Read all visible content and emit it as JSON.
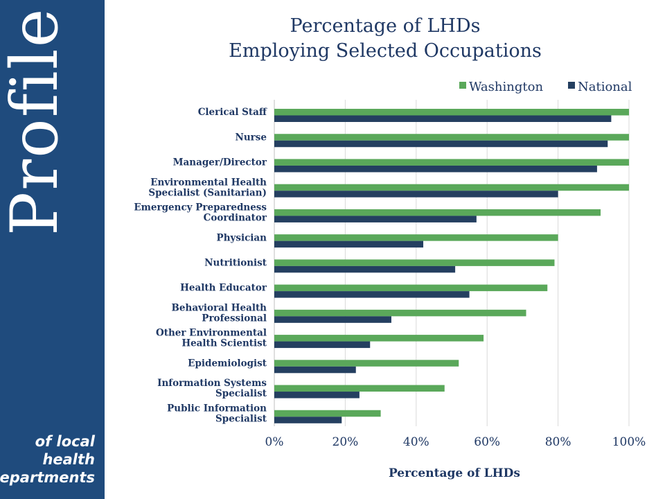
{
  "sidebar": {
    "brand": "Profile",
    "tagline": [
      "of local",
      "health",
      "departments"
    ],
    "background": "#1f4b7d"
  },
  "chart_data": {
    "type": "bar",
    "orientation": "horizontal",
    "title": [
      "Percentage of LHDs",
      "Employing Selected Occupations"
    ],
    "xlabel": "Percentage of LHDs",
    "ylabel": "",
    "xlim": [
      0,
      100
    ],
    "xticks": [
      "0%",
      "20%",
      "40%",
      "60%",
      "80%",
      "100%"
    ],
    "grid": true,
    "legend_position": "top-right",
    "categories": [
      [
        "Clerical Staff"
      ],
      [
        "Nurse"
      ],
      [
        "Manager/Director"
      ],
      [
        "Environmental Health",
        "Specialist (Sanitarian)"
      ],
      [
        "Emergency Preparedness",
        "Coordinator"
      ],
      [
        "Physician"
      ],
      [
        "Nutritionist"
      ],
      [
        "Health Educator"
      ],
      [
        "Behavioral Health",
        "Professional"
      ],
      [
        "Other Environmental",
        "Health Scientist"
      ],
      [
        "Epidemiologist"
      ],
      [
        "Information Systems",
        "Specialist"
      ],
      [
        "Public Information",
        "Specialist"
      ]
    ],
    "series": [
      {
        "name": "Washington",
        "color": "#5aa85a",
        "values": [
          100,
          100,
          100,
          100,
          92,
          80,
          79,
          77,
          71,
          59,
          52,
          48,
          30
        ]
      },
      {
        "name": "National",
        "color": "#243f60",
        "values": [
          95,
          94,
          91,
          80,
          57,
          42,
          51,
          55,
          33,
          27,
          23,
          24,
          19
        ]
      }
    ]
  }
}
